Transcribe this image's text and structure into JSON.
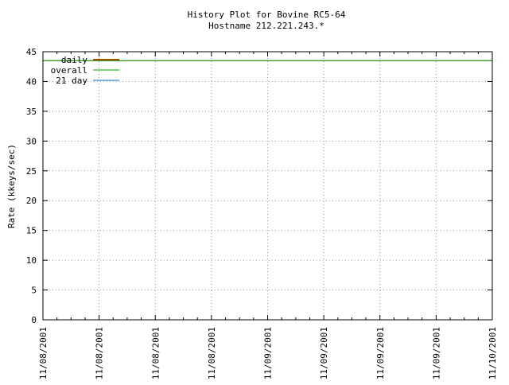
{
  "chart_data": {
    "type": "line",
    "title": "History Plot for Bovine RC5-64",
    "subtitle": "Hostname 212.221.243.*",
    "xlabel": "",
    "ylabel": "Rate (kkeys/sec)",
    "ylim": [
      0,
      45
    ],
    "y_ticks": [
      0,
      5,
      10,
      15,
      20,
      25,
      30,
      35,
      40,
      45
    ],
    "x_tick_labels": [
      "11/08/2001",
      "11/08/2001",
      "11/08/2001",
      "11/08/2001",
      "11/09/2001",
      "11/09/2001",
      "11/09/2001",
      "11/09/2001",
      "11/10/2001"
    ],
    "grid": true,
    "legend_placement": "top-left",
    "series": [
      {
        "name": "daily",
        "color": "#a05000",
        "values": [
          43.5,
          43.5
        ]
      },
      {
        "name": "overall",
        "color": "#00a000",
        "values": [
          43.5,
          43.5
        ]
      },
      {
        "name": "21 day",
        "color": "#0070c0",
        "values": []
      }
    ]
  }
}
